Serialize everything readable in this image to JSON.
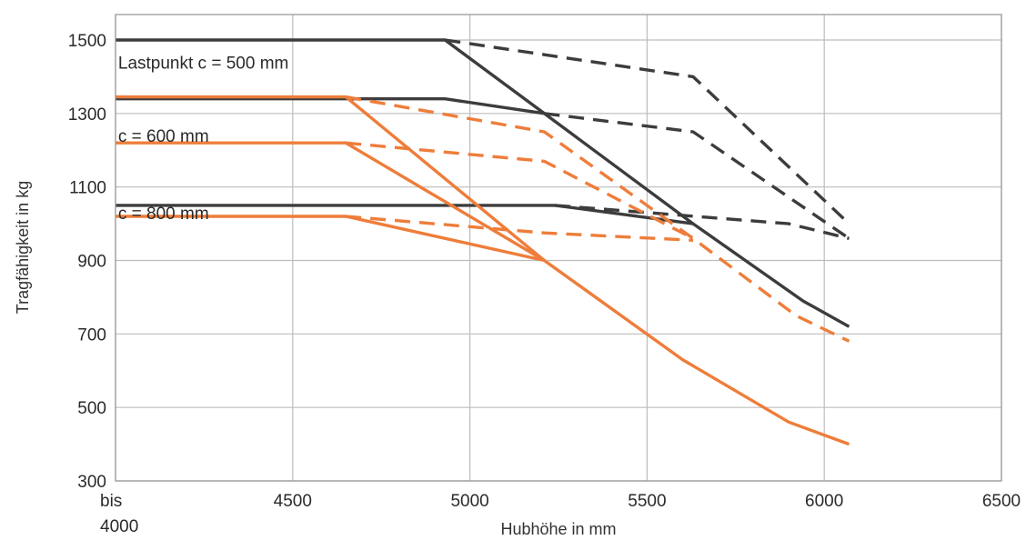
{
  "chart_data": {
    "type": "line",
    "title": "",
    "xlabel": "Hubhöhe in mm",
    "ylabel": "Tragfähigkeit in kg",
    "xlim": [
      4000,
      6500
    ],
    "ylim": [
      300,
      1500
    ],
    "y_extend_top": 1570,
    "grid": true,
    "legend": "none",
    "x_ticks": [
      {
        "value": 4000,
        "label": "bis",
        "label2": "4000"
      },
      {
        "value": 4500,
        "label": "4500"
      },
      {
        "value": 5000,
        "label": "5000"
      },
      {
        "value": 5500,
        "label": "5500"
      },
      {
        "value": 6000,
        "label": "6000"
      },
      {
        "value": 6500,
        "label": "6500"
      }
    ],
    "y_ticks": [
      {
        "value": 300,
        "label": "300"
      },
      {
        "value": 500,
        "label": "500"
      },
      {
        "value": 700,
        "label": "700"
      },
      {
        "value": 900,
        "label": "900"
      },
      {
        "value": 1100,
        "label": "1100"
      },
      {
        "value": 1300,
        "label": "1300"
      },
      {
        "value": 1500,
        "label": "1500"
      }
    ],
    "annotations": [
      {
        "text": "Lastpunkt c = 500 mm",
        "x": 4010,
        "y": 1440
      },
      {
        "text": "c = 600 mm",
        "x": 4010,
        "y": 1240
      },
      {
        "text": "c = 800 mm",
        "x": 4010,
        "y": 1030
      }
    ],
    "colors": {
      "gray": "#3c3c3c",
      "orange": "#ee7d3a",
      "grid": "#bdbdbd"
    },
    "series": [
      {
        "color": "gray",
        "style": "solid",
        "points": [
          [
            4000,
            1500
          ],
          [
            4930,
            1500
          ],
          [
            5210,
            1300
          ],
          [
            5630,
            1000
          ],
          [
            5940,
            790
          ],
          [
            6070,
            720
          ]
        ]
      },
      {
        "color": "gray",
        "style": "dashed",
        "points": [
          [
            4930,
            1500
          ],
          [
            5630,
            1400
          ],
          [
            6070,
            1000
          ]
        ]
      },
      {
        "color": "gray",
        "style": "solid",
        "points": [
          [
            4000,
            1340
          ],
          [
            4930,
            1340
          ],
          [
            5210,
            1300
          ]
        ]
      },
      {
        "color": "gray",
        "style": "dashed",
        "points": [
          [
            5210,
            1300
          ],
          [
            5630,
            1250
          ],
          [
            6070,
            960
          ]
        ]
      },
      {
        "color": "gray",
        "style": "solid",
        "points": [
          [
            4000,
            1050
          ],
          [
            5240,
            1050
          ],
          [
            5630,
            1000
          ]
        ]
      },
      {
        "color": "gray",
        "style": "dashed",
        "points": [
          [
            5240,
            1050
          ],
          [
            5900,
            1000
          ],
          [
            6070,
            960
          ]
        ]
      },
      {
        "color": "orange",
        "style": "solid",
        "points": [
          [
            4000,
            1345
          ],
          [
            4650,
            1345
          ],
          [
            5210,
            900
          ],
          [
            5600,
            630
          ],
          [
            5900,
            460
          ],
          [
            6070,
            400
          ]
        ]
      },
      {
        "color": "orange",
        "style": "dashed",
        "points": [
          [
            4650,
            1345
          ],
          [
            5210,
            1250
          ],
          [
            5630,
            960
          ],
          [
            5920,
            750
          ],
          [
            6070,
            680
          ]
        ]
      },
      {
        "color": "orange",
        "style": "solid",
        "points": [
          [
            4000,
            1220
          ],
          [
            4650,
            1220
          ],
          [
            5210,
            900
          ]
        ]
      },
      {
        "color": "orange",
        "style": "dashed",
        "points": [
          [
            4650,
            1220
          ],
          [
            5210,
            1170
          ],
          [
            5630,
            960
          ]
        ]
      },
      {
        "color": "orange",
        "style": "solid",
        "points": [
          [
            4000,
            1020
          ],
          [
            4650,
            1020
          ],
          [
            5210,
            900
          ]
        ]
      },
      {
        "color": "orange",
        "style": "dashed",
        "points": [
          [
            4650,
            1020
          ],
          [
            5210,
            975
          ],
          [
            5630,
            955
          ]
        ]
      }
    ]
  }
}
